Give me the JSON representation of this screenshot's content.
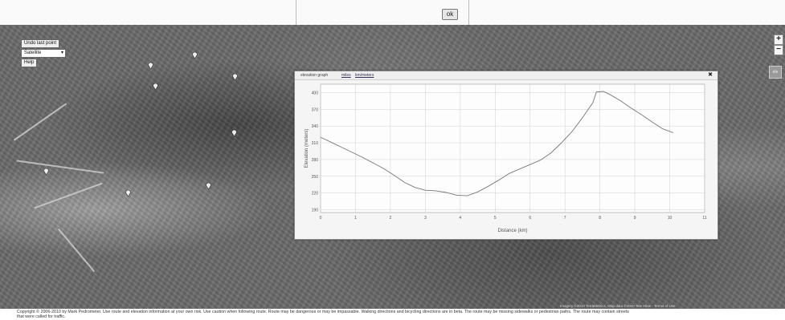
{
  "toolbar": {
    "ok_label": "ok"
  },
  "map_controls": {
    "undo_label": "Undo last point",
    "mode_select": "Satellite",
    "help_label": "Help",
    "zoom_in": "+",
    "zoom_out": "−",
    "side_button": "ele"
  },
  "panel": {
    "title": "elevation graph",
    "link1": "miles",
    "link2": "km/meters",
    "close": "✖"
  },
  "chart_data": {
    "type": "line",
    "xlabel": "Distance (km)",
    "ylabel": "Elevation (meters)",
    "xlim": [
      0,
      11
    ],
    "ylim": [
      185,
      415
    ],
    "x_ticks": [
      "0",
      "1",
      "2",
      "3",
      "4",
      "5",
      "6",
      "7",
      "8",
      "9",
      "10",
      "11"
    ],
    "y_ticks": [
      "190",
      "220",
      "250",
      "280",
      "310",
      "340",
      "370",
      "400"
    ],
    "grid": true,
    "series": [
      {
        "x": [
          0,
          0.3,
          0.6,
          0.9,
          1.2,
          1.5,
          1.8,
          2.1,
          2.4,
          2.7,
          3.0,
          3.3,
          3.6,
          3.9,
          4.2,
          4.5,
          4.8,
          5.1,
          5.4,
          5.7,
          6.0,
          6.3,
          6.6,
          6.9,
          7.2,
          7.5,
          7.8,
          7.9,
          8.1,
          8.3,
          8.6,
          8.9,
          9.2,
          9.5,
          9.8,
          10.1
        ],
        "y": [
          320,
          311,
          302,
          293,
          284,
          274,
          264,
          252,
          239,
          230,
          225,
          224,
          221,
          216,
          215,
          222,
          232,
          243,
          255,
          263,
          271,
          279,
          292,
          310,
          330,
          355,
          382,
          401,
          402,
          396,
          385,
          372,
          360,
          347,
          335,
          328
        ]
      }
    ]
  },
  "footer": {
    "line1": "Copyright © 2006-2010 by Mark Pedrometer. Use route and elevation information at your own risk. Use caution when following route. Route may be dangerous or may be impassable. Walking directions and bicycling directions are in beta. The route may be missing sidewalks or pedestrian paths. The route may contain streets",
    "line2": "that were called for traffic.",
    "attribution": "Imagery ©2010 TerraMetrics, Map data ©2010 Tele Atlas - Terms of Use"
  }
}
